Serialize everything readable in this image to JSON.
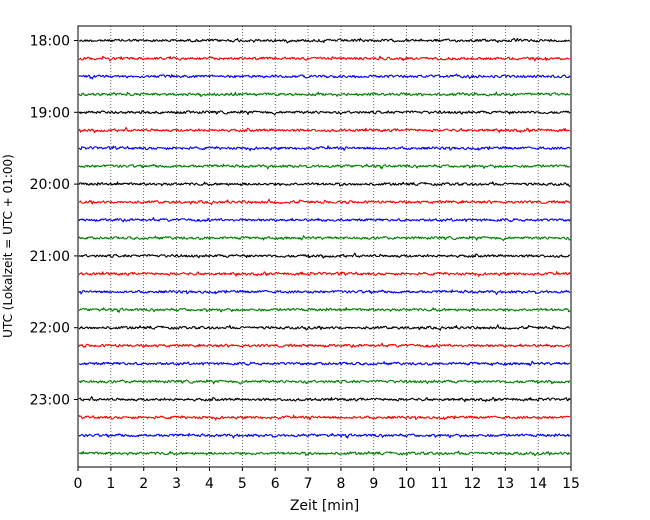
{
  "chart_data": {
    "type": "line",
    "title": "",
    "xlabel": "Zeit  [min]",
    "ylabel": "UTC (Lokalzeit = UTC + 01:00)",
    "xlim": [
      0,
      15
    ],
    "xticks": [
      "0",
      "1",
      "2",
      "3",
      "4",
      "5",
      "6",
      "7",
      "8",
      "9",
      "10",
      "11",
      "12",
      "13",
      "14",
      "15"
    ],
    "yticks": [
      "18:00",
      "19:00",
      "20:00",
      "21:00",
      "22:00",
      "23:00"
    ],
    "grid": "vertical dotted",
    "trace_colors": [
      "#000000",
      "#ff0000",
      "#0000ff",
      "#008000"
    ],
    "traces": [
      {
        "start": "18:00",
        "color": "#000000"
      },
      {
        "start": "18:15",
        "color": "#ff0000"
      },
      {
        "start": "18:30",
        "color": "#0000ff"
      },
      {
        "start": "18:45",
        "color": "#008000"
      },
      {
        "start": "19:00",
        "color": "#000000"
      },
      {
        "start": "19:15",
        "color": "#ff0000"
      },
      {
        "start": "19:30",
        "color": "#0000ff"
      },
      {
        "start": "19:45",
        "color": "#008000"
      },
      {
        "start": "20:00",
        "color": "#000000"
      },
      {
        "start": "20:15",
        "color": "#ff0000"
      },
      {
        "start": "20:30",
        "color": "#0000ff"
      },
      {
        "start": "20:45",
        "color": "#008000"
      },
      {
        "start": "21:00",
        "color": "#000000"
      },
      {
        "start": "21:15",
        "color": "#ff0000"
      },
      {
        "start": "21:30",
        "color": "#0000ff"
      },
      {
        "start": "21:45",
        "color": "#008000"
      },
      {
        "start": "22:00",
        "color": "#000000"
      },
      {
        "start": "22:15",
        "color": "#ff0000"
      },
      {
        "start": "22:30",
        "color": "#0000ff"
      },
      {
        "start": "22:45",
        "color": "#008000"
      },
      {
        "start": "23:00",
        "color": "#000000"
      },
      {
        "start": "23:15",
        "color": "#ff0000"
      },
      {
        "start": "23:30",
        "color": "#0000ff"
      },
      {
        "start": "23:45",
        "color": "#008000"
      }
    ]
  }
}
